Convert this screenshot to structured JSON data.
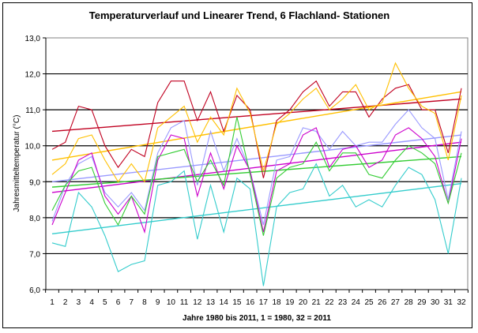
{
  "chart_data": {
    "type": "line",
    "title": "Temperaturverlauf und Linearer Trend, 6 Flachland- Stationen",
    "xlabel": "Jahre 1980 bis 2011, 1 = 1980, 32 = 2011",
    "ylabel": "Jahresmitteltemperatur (°C)",
    "ylim": [
      6.0,
      13.0
    ],
    "y_ticks": [
      "6,0",
      "7,0",
      "8,0",
      "9,0",
      "10,0",
      "11,0",
      "12,0",
      "13,0"
    ],
    "y_tick_values": [
      6,
      7,
      8,
      9,
      10,
      11,
      12,
      13
    ],
    "x": [
      1,
      2,
      3,
      4,
      5,
      6,
      7,
      8,
      9,
      10,
      11,
      12,
      13,
      14,
      15,
      16,
      17,
      18,
      19,
      20,
      21,
      22,
      23,
      24,
      25,
      26,
      27,
      28,
      29,
      30,
      31,
      32
    ],
    "x_ticks": [
      "1",
      "2",
      "3",
      "4",
      "5",
      "6",
      "7",
      "8",
      "9",
      "10",
      "11",
      "12",
      "13",
      "14",
      "15",
      "16",
      "17",
      "18",
      "19",
      "20",
      "21",
      "22",
      "23",
      "24",
      "25",
      "26",
      "27",
      "28",
      "29",
      "30",
      "31",
      "32"
    ],
    "grid": true,
    "legend": "none",
    "series": [
      {
        "name": "station-dark-red",
        "color": "#c00020",
        "values": [
          9.9,
          10.1,
          11.1,
          11.0,
          10.0,
          9.4,
          9.9,
          9.7,
          11.2,
          11.8,
          11.8,
          10.7,
          11.5,
          10.4,
          11.4,
          11.0,
          9.1,
          10.7,
          11.0,
          11.5,
          11.8,
          11.1,
          11.5,
          11.5,
          10.8,
          11.3,
          11.6,
          11.7,
          11.0,
          11.0,
          9.8,
          11.6
        ],
        "trend": [
          10.4,
          11.3
        ]
      },
      {
        "name": "station-yellow",
        "color": "#ffc000",
        "values": [
          9.2,
          9.5,
          10.2,
          10.3,
          9.6,
          9.0,
          9.5,
          9.0,
          10.5,
          10.8,
          11.1,
          10.1,
          10.8,
          10.3,
          11.6,
          10.9,
          9.3,
          10.6,
          10.9,
          11.3,
          11.6,
          11.0,
          11.3,
          11.7,
          11.0,
          11.2,
          12.3,
          11.6,
          11.1,
          10.9,
          9.6,
          11.4
        ],
        "trend": [
          9.6,
          11.5
        ]
      },
      {
        "name": "station-lavender",
        "color": "#9999ff",
        "values": [
          7.9,
          8.9,
          9.5,
          9.7,
          8.7,
          8.3,
          8.7,
          8.2,
          9.8,
          10.5,
          10.7,
          8.9,
          10.4,
          9.3,
          10.2,
          9.3,
          7.8,
          9.6,
          9.7,
          10.5,
          10.4,
          9.9,
          10.4,
          10.0,
          10.1,
          10.1,
          10.6,
          11.0,
          10.5,
          10.2,
          8.5,
          10.4
        ],
        "trend": [
          9.0,
          10.3
        ]
      },
      {
        "name": "station-magenta",
        "color": "#cc00cc",
        "values": [
          7.8,
          8.7,
          9.6,
          9.8,
          8.6,
          8.1,
          8.6,
          7.6,
          9.6,
          10.3,
          10.2,
          8.6,
          9.8,
          8.8,
          10.0,
          9.3,
          7.6,
          9.3,
          9.5,
          10.3,
          10.5,
          9.4,
          9.9,
          10.0,
          9.4,
          9.6,
          10.3,
          10.5,
          10.2,
          9.7,
          8.4,
          10.2
        ],
        "trend": [
          8.7,
          10.1
        ]
      },
      {
        "name": "station-green",
        "color": "#33cc33",
        "values": [
          8.2,
          8.9,
          9.3,
          9.4,
          8.4,
          7.8,
          8.6,
          8.1,
          9.7,
          9.8,
          9.9,
          9.0,
          9.6,
          8.9,
          10.8,
          9.2,
          7.5,
          9.1,
          9.4,
          9.5,
          10.1,
          9.3,
          9.8,
          9.8,
          9.2,
          9.1,
          9.6,
          10.0,
          9.8,
          9.5,
          8.4,
          9.8
        ],
        "trend": [
          8.85,
          9.7
        ]
      },
      {
        "name": "station-cyan",
        "color": "#33cccc",
        "values": [
          7.3,
          7.2,
          8.7,
          8.3,
          7.5,
          6.5,
          6.7,
          6.8,
          8.9,
          9.0,
          9.3,
          7.4,
          8.9,
          7.6,
          9.1,
          8.8,
          6.1,
          8.3,
          8.7,
          8.8,
          9.5,
          8.6,
          8.9,
          8.3,
          8.5,
          8.3,
          8.9,
          9.4,
          9.2,
          8.5,
          7.0,
          9.1
        ],
        "trend": [
          7.55,
          8.95
        ]
      }
    ]
  }
}
